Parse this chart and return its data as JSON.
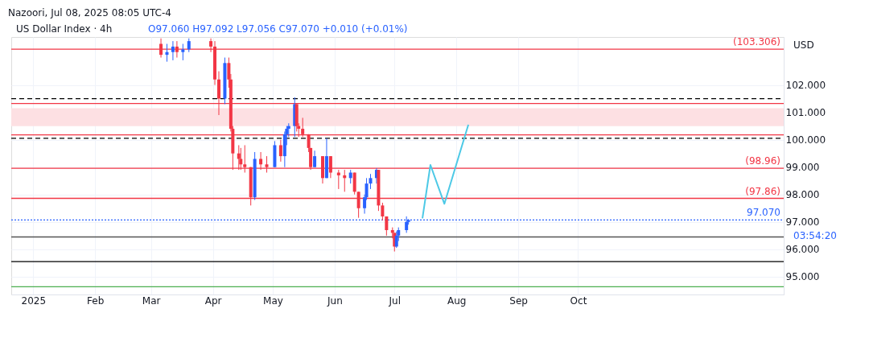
{
  "chart_data": {
    "type": "candlestick",
    "title": "US Dollar Index · 4h",
    "x": [
      "2025-03-06",
      "2025-03-09",
      "2025-03-12",
      "2025-03-14",
      "2025-03-17",
      "2025-03-20",
      "2025-03-31",
      "2025-04-02",
      "2025-04-04",
      "2025-04-07",
      "2025-04-09",
      "2025-04-10",
      "2025-04-11",
      "2025-04-14",
      "2025-04-15",
      "2025-04-17",
      "2025-04-20",
      "2025-04-22",
      "2025-04-25",
      "2025-04-28",
      "2025-05-02",
      "2025-05-05",
      "2025-05-07",
      "2025-05-08",
      "2025-05-09",
      "2025-05-12",
      "2025-05-13",
      "2025-05-14",
      "2025-05-16",
      "2025-05-19",
      "2025-05-20",
      "2025-05-22",
      "2025-05-26",
      "2025-05-28",
      "2025-05-30",
      "2025-06-03",
      "2025-06-06",
      "2025-06-09",
      "2025-06-11",
      "2025-06-13",
      "2025-06-16",
      "2025-06-17",
      "2025-06-19",
      "2025-06-22",
      "2025-06-23",
      "2025-06-25",
      "2025-06-27",
      "2025-06-30",
      "2025-07-01",
      "2025-07-02",
      "2025-07-03",
      "2025-07-07",
      "2025-07-08"
    ],
    "ohlc": [
      [
        103.5,
        103.7,
        103.0,
        103.1
      ],
      [
        103.1,
        103.5,
        102.85,
        103.2
      ],
      [
        103.2,
        103.6,
        102.9,
        103.4
      ],
      [
        103.4,
        103.6,
        103.0,
        103.2
      ],
      [
        103.2,
        103.5,
        102.9,
        103.3
      ],
      [
        103.3,
        103.7,
        103.2,
        103.6
      ],
      [
        103.6,
        103.7,
        103.2,
        103.4
      ],
      [
        103.4,
        103.6,
        102.0,
        102.2
      ],
      [
        102.2,
        102.5,
        100.9,
        101.5
      ],
      [
        101.5,
        103.0,
        101.3,
        102.8
      ],
      [
        102.8,
        103.0,
        101.9,
        102.2
      ],
      [
        102.2,
        102.4,
        100.3,
        100.4
      ],
      [
        100.4,
        100.5,
        98.9,
        99.5
      ],
      [
        99.5,
        99.8,
        98.9,
        99.3
      ],
      [
        99.3,
        99.7,
        98.9,
        99.1
      ],
      [
        99.1,
        99.8,
        98.8,
        99.0
      ],
      [
        99.0,
        99.0,
        97.6,
        97.9
      ],
      [
        97.9,
        99.55,
        97.8,
        99.3
      ],
      [
        99.3,
        99.55,
        98.9,
        99.1
      ],
      [
        99.1,
        99.4,
        98.8,
        99.0
      ],
      [
        99.0,
        99.95,
        99.0,
        99.8
      ],
      [
        99.8,
        100.0,
        99.2,
        99.4
      ],
      [
        99.4,
        100.3,
        99.0,
        100.2
      ],
      [
        100.2,
        100.5,
        99.8,
        100.4
      ],
      [
        100.4,
        100.6,
        100.1,
        100.5
      ],
      [
        100.5,
        101.55,
        100.1,
        101.3
      ],
      [
        101.3,
        101.3,
        100.3,
        100.5
      ],
      [
        100.5,
        100.6,
        100.1,
        100.4
      ],
      [
        100.4,
        100.8,
        100.1,
        100.2
      ],
      [
        100.2,
        100.2,
        99.55,
        99.7
      ],
      [
        99.7,
        99.7,
        98.9,
        99.0
      ],
      [
        99.0,
        99.6,
        99.0,
        99.4
      ],
      [
        99.4,
        99.4,
        98.4,
        98.6
      ],
      [
        98.6,
        100.05,
        98.6,
        99.4
      ],
      [
        99.4,
        99.4,
        98.6,
        98.8
      ],
      [
        98.8,
        98.9,
        98.2,
        98.7
      ],
      [
        98.7,
        98.9,
        98.1,
        98.6
      ],
      [
        98.6,
        98.9,
        98.4,
        98.8
      ],
      [
        98.8,
        98.8,
        98.0,
        98.1
      ],
      [
        98.1,
        98.1,
        97.15,
        97.5
      ],
      [
        97.5,
        98.0,
        97.3,
        97.9
      ],
      [
        97.9,
        98.6,
        97.8,
        98.4
      ],
      [
        98.4,
        98.75,
        98.2,
        98.6
      ],
      [
        98.6,
        98.96,
        98.4,
        98.9
      ],
      [
        98.9,
        98.9,
        97.4,
        97.6
      ],
      [
        97.6,
        97.7,
        97.05,
        97.2
      ],
      [
        97.2,
        97.2,
        96.5,
        96.7
      ],
      [
        96.7,
        96.8,
        96.4,
        96.6
      ],
      [
        96.6,
        96.6,
        95.92,
        96.1
      ],
      [
        96.1,
        96.65,
        96.05,
        96.5
      ],
      [
        96.5,
        96.8,
        96.3,
        96.7
      ],
      [
        96.7,
        97.2,
        96.6,
        97.0
      ],
      [
        97.0,
        97.1,
        96.9,
        97.07
      ]
    ],
    "colors": [
      "#f23645",
      "#2962ff",
      "#2962ff",
      "#f23645",
      "#2962ff",
      "#2962ff",
      "#f23645",
      "#f23645",
      "#f23645",
      "#2962ff",
      "#f23645",
      "#f23645",
      "#f23645",
      "#f23645",
      "#f23645",
      "#f23645",
      "#f23645",
      "#2962ff",
      "#f23645",
      "#f23645",
      "#2962ff",
      "#f23645",
      "#2962ff",
      "#2962ff",
      "#2962ff",
      "#2962ff",
      "#f23645",
      "#f23645",
      "#f23645",
      "#f23645",
      "#f23645",
      "#2962ff",
      "#f23645",
      "#2962ff",
      "#f23645",
      "#f23645",
      "#f23645",
      "#2962ff",
      "#f23645",
      "#f23645",
      "#2962ff",
      "#2962ff",
      "#2962ff",
      "#2962ff",
      "#f23645",
      "#f23645",
      "#f23645",
      "#f23645",
      "#f23645",
      "#2962ff",
      "#2962ff",
      "#2962ff",
      "#2962ff"
    ],
    "series": [
      {
        "type": "line",
        "color": "#4dc9e6",
        "x": [
          "2025-07-15",
          "2025-07-19",
          "2025-07-26",
          "2025-08-07"
        ],
        "values": [
          97.13,
          99.08,
          97.66,
          100.55
        ]
      }
    ],
    "xlim": [
      "2024-12-21",
      "2026-01-12"
    ],
    "xticks": [
      {
        "value": "2025-01-01",
        "label": "2025"
      },
      {
        "value": "2025-02-01",
        "label": "Feb"
      },
      {
        "value": "2025-03-01",
        "label": "Mar"
      },
      {
        "value": "2025-04-01",
        "label": "Apr"
      },
      {
        "value": "2025-05-01",
        "label": "May"
      },
      {
        "value": "2025-06-01",
        "label": "Jun"
      },
      {
        "value": "2025-07-01",
        "label": "Jul"
      },
      {
        "value": "2025-08-01",
        "label": "Aug"
      },
      {
        "value": "2025-09-01",
        "label": "Sep"
      },
      {
        "value": "2025-10-01",
        "label": "Oct"
      }
    ],
    "ylim": [
      94.35,
      103.75
    ],
    "yticks": [
      {
        "value": 95,
        "label": "95.000"
      },
      {
        "value": 96,
        "label": "96.000"
      },
      {
        "value": 97,
        "label": "97.000"
      },
      {
        "value": 98,
        "label": "98.000"
      },
      {
        "value": 99,
        "label": "99.000"
      },
      {
        "value": 100,
        "label": "100.000"
      },
      {
        "value": 101,
        "label": "101.000"
      },
      {
        "value": 102,
        "label": "102.000"
      }
    ],
    "grid": true,
    "bands": [
      {
        "axis": "y",
        "from": 100.5,
        "to": 101.15,
        "color": "#fde0e3"
      }
    ],
    "ref_lines": [
      {
        "axis": "y",
        "value": 103.306,
        "label": "(103.306)",
        "color": "#f23645"
      },
      {
        "axis": "y",
        "value": 101.32,
        "color": "#f23645"
      },
      {
        "axis": "y",
        "value": 101.5,
        "color": "#000000",
        "line_style": "dashed"
      },
      {
        "axis": "y",
        "value": 100.18,
        "color": "#f23645"
      },
      {
        "axis": "y",
        "value": 100.05,
        "color": "#000000",
        "line_style": "dashed"
      },
      {
        "axis": "y",
        "value": 98.96,
        "label": "(98.96)",
        "color": "#f23645"
      },
      {
        "axis": "y",
        "value": 97.86,
        "label": "(97.86)",
        "color": "#f23645"
      },
      {
        "axis": "y",
        "value": 97.07,
        "label": "97.070",
        "color": "#2962ff",
        "line_style": "dotted"
      },
      {
        "axis": "y",
        "value": 96.45,
        "color": "#555555"
      },
      {
        "axis": "y",
        "value": 95.55,
        "color": "#000000"
      },
      {
        "axis": "y",
        "value": 94.63,
        "color": "#4caf50"
      }
    ],
    "annotations": [
      "Nazoori, Jul 08, 2025 08:05 UTC-4",
      "O97.060 H97.092 L97.056 C97.070 +0.010 (+0.01%)",
      "USD",
      "03:54:20"
    ]
  }
}
